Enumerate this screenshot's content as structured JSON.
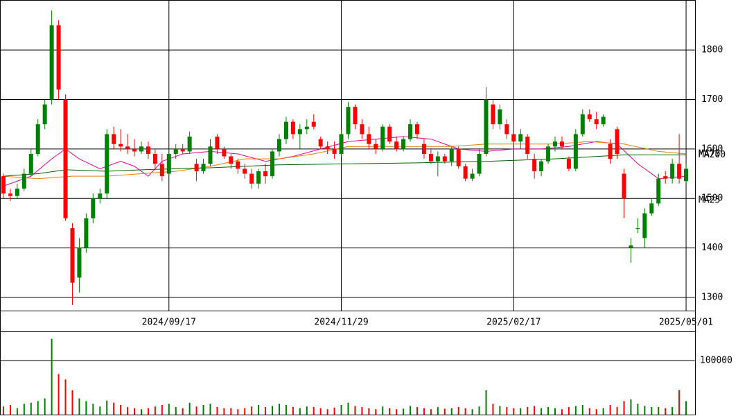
{
  "chart_data": [
    {
      "type": "candlestick",
      "up_color": "#008000",
      "down_color": "#ff0000",
      "ylim": [
        1272,
        1901
      ],
      "yticks": [
        1300,
        1400,
        1500,
        1600,
        1700,
        1800
      ],
      "grid": true,
      "xlim": [
        -0.5,
        100.3
      ],
      "xticks": [
        {
          "value": 24,
          "label": "2024/09/17"
        },
        {
          "value": 49,
          "label": "2024/11/29"
        },
        {
          "value": 74,
          "label": "2025/02/17"
        },
        {
          "value": 99,
          "label": "2025/05/01"
        }
      ],
      "candles": [
        [
          1545,
          1550,
          1500,
          1510
        ],
        [
          1510,
          1520,
          1495,
          1505
        ],
        [
          1505,
          1530,
          1500,
          1520
        ],
        [
          1520,
          1560,
          1515,
          1550
        ],
        [
          1550,
          1600,
          1545,
          1590
        ],
        [
          1590,
          1660,
          1585,
          1650
        ],
        [
          1650,
          1700,
          1640,
          1690
        ],
        [
          1700,
          1880,
          1690,
          1850
        ],
        [
          1850,
          1860,
          1700,
          1720
        ],
        [
          1700,
          1710,
          1455,
          1460
        ],
        [
          1440,
          1450,
          1285,
          1330
        ],
        [
          1340,
          1420,
          1310,
          1400
        ],
        [
          1400,
          1470,
          1390,
          1460
        ],
        [
          1460,
          1510,
          1450,
          1500
        ],
        [
          1500,
          1520,
          1490,
          1510
        ],
        [
          1510,
          1640,
          1500,
          1630
        ],
        [
          1630,
          1645,
          1600,
          1610
        ],
        [
          1610,
          1640,
          1595,
          1605
        ],
        [
          1605,
          1630,
          1590,
          1600
        ],
        [
          1600,
          1620,
          1585,
          1595
        ],
        [
          1595,
          1615,
          1590,
          1605
        ],
        [
          1605,
          1615,
          1580,
          1590
        ],
        [
          1590,
          1600,
          1560,
          1570
        ],
        [
          1570,
          1590,
          1535,
          1545
        ],
        [
          1550,
          1600,
          1545,
          1590
        ],
        [
          1590,
          1610,
          1580,
          1600
        ],
        [
          1600,
          1610,
          1590,
          1595
        ],
        [
          1595,
          1635,
          1590,
          1625
        ],
        [
          1570,
          1580,
          1535,
          1555
        ],
        [
          1555,
          1580,
          1550,
          1570
        ],
        [
          1570,
          1620,
          1565,
          1605
        ],
        [
          1625,
          1630,
          1590,
          1600
        ],
        [
          1600,
          1605,
          1580,
          1585
        ],
        [
          1585,
          1590,
          1560,
          1570
        ],
        [
          1575,
          1580,
          1550,
          1560
        ],
        [
          1560,
          1570,
          1540,
          1550
        ],
        [
          1550,
          1560,
          1520,
          1530
        ],
        [
          1530,
          1560,
          1520,
          1555
        ],
        [
          1555,
          1570,
          1530,
          1545
        ],
        [
          1545,
          1600,
          1540,
          1595
        ],
        [
          1595,
          1630,
          1585,
          1620
        ],
        [
          1620,
          1665,
          1610,
          1655
        ],
        [
          1655,
          1660,
          1620,
          1630
        ],
        [
          1630,
          1650,
          1600,
          1640
        ],
        [
          1640,
          1660,
          1630,
          1645
        ],
        [
          1655,
          1670,
          1640,
          1645
        ],
        [
          1620,
          1625,
          1600,
          1605
        ],
        [
          1605,
          1615,
          1590,
          1600
        ],
        [
          1600,
          1615,
          1580,
          1590
        ],
        [
          1590,
          1640,
          1585,
          1630
        ],
        [
          1630,
          1695,
          1620,
          1685
        ],
        [
          1685,
          1690,
          1640,
          1650
        ],
        [
          1650,
          1660,
          1620,
          1630
        ],
        [
          1630,
          1645,
          1600,
          1610
        ],
        [
          1610,
          1620,
          1590,
          1600
        ],
        [
          1600,
          1650,
          1595,
          1645
        ],
        [
          1645,
          1650,
          1610,
          1615
        ],
        [
          1615,
          1625,
          1595,
          1600
        ],
        [
          1600,
          1625,
          1595,
          1620
        ],
        [
          1620,
          1660,
          1615,
          1650
        ],
        [
          1650,
          1655,
          1620,
          1630
        ],
        [
          1610,
          1620,
          1580,
          1590
        ],
        [
          1590,
          1600,
          1570,
          1575
        ],
        [
          1575,
          1595,
          1545,
          1585
        ],
        [
          1585,
          1590,
          1570,
          1575
        ],
        [
          1575,
          1605,
          1565,
          1600
        ],
        [
          1600,
          1605,
          1560,
          1565
        ],
        [
          1565,
          1570,
          1535,
          1540
        ],
        [
          1540,
          1560,
          1535,
          1550
        ],
        [
          1550,
          1600,
          1545,
          1590
        ],
        [
          1590,
          1725,
          1585,
          1700
        ],
        [
          1690,
          1700,
          1640,
          1650
        ],
        [
          1650,
          1690,
          1640,
          1680
        ],
        [
          1650,
          1660,
          1620,
          1630
        ],
        [
          1630,
          1650,
          1610,
          1615
        ],
        [
          1615,
          1640,
          1600,
          1630
        ],
        [
          1625,
          1630,
          1580,
          1590
        ],
        [
          1580,
          1590,
          1540,
          1555
        ],
        [
          1555,
          1580,
          1545,
          1575
        ],
        [
          1575,
          1610,
          1570,
          1605
        ],
        [
          1605,
          1625,
          1595,
          1615
        ],
        [
          1615,
          1625,
          1600,
          1605
        ],
        [
          1580,
          1585,
          1555,
          1560
        ],
        [
          1560,
          1640,
          1555,
          1630
        ],
        [
          1630,
          1680,
          1625,
          1670
        ],
        [
          1670,
          1680,
          1655,
          1660
        ],
        [
          1660,
          1675,
          1640,
          1650
        ],
        [
          1650,
          1670,
          1645,
          1665
        ],
        [
          1610,
          1620,
          1570,
          1580
        ],
        [
          1640,
          1645,
          1580,
          1590
        ],
        [
          1550,
          1560,
          1460,
          1500
        ],
        [
          1400,
          1420,
          1370,
          1405
        ],
        [
          1440,
          1460,
          1430,
          1440
        ],
        [
          1420,
          1480,
          1400,
          1470
        ],
        [
          1470,
          1500,
          1465,
          1490
        ],
        [
          1490,
          1550,
          1485,
          1540
        ],
        [
          1545,
          1555,
          1530,
          1540
        ],
        [
          1540,
          1580,
          1530,
          1570
        ],
        [
          1570,
          1630,
          1530,
          1540
        ],
        [
          1535,
          1570,
          1530,
          1560
        ]
      ],
      "series": [
        {
          "name": "MA25",
          "color": "#e000a0",
          "x": [
            0,
            4,
            7,
            9,
            11,
            14,
            17,
            19,
            21,
            23,
            26,
            30,
            34,
            38,
            42,
            46,
            50,
            54,
            58,
            62,
            66,
            70,
            74,
            78,
            82,
            86,
            89,
            92,
            95,
            99
          ],
          "values": [
            1525,
            1545,
            1580,
            1600,
            1580,
            1560,
            1575,
            1565,
            1545,
            1575,
            1590,
            1595,
            1590,
            1575,
            1585,
            1600,
            1615,
            1620,
            1625,
            1620,
            1600,
            1595,
            1600,
            1600,
            1605,
            1615,
            1610,
            1570,
            1540,
            1545
          ]
        },
        {
          "name": "MA75",
          "color": "#e08000",
          "x": [
            0,
            5,
            10,
            15,
            20,
            25,
            30,
            35,
            40,
            45,
            50,
            55,
            60,
            65,
            70,
            75,
            80,
            85,
            90,
            95,
            99
          ],
          "values": [
            1545,
            1540,
            1545,
            1545,
            1550,
            1555,
            1565,
            1580,
            1580,
            1590,
            1605,
            1605,
            1605,
            1605,
            1610,
            1610,
            1610,
            1615,
            1610,
            1595,
            1590
          ]
        },
        {
          "name": "MA200",
          "color": "#006000",
          "x": [
            0,
            5,
            9,
            15,
            20,
            30,
            40,
            50,
            60,
            70,
            80,
            90,
            99
          ],
          "values": [
            1545,
            1550,
            1558,
            1555,
            1558,
            1562,
            1568,
            1570,
            1572,
            1575,
            1580,
            1588,
            1588
          ]
        }
      ]
    },
    {
      "type": "volume",
      "ylim": [
        0,
        152500
      ],
      "yticks": [
        100000
      ],
      "grid": true,
      "values": [
        15000,
        18000,
        12000,
        20000,
        22000,
        25000,
        30000,
        140000,
        75000,
        65000,
        45000,
        30000,
        25000,
        20000,
        15000,
        26000,
        22000,
        18000,
        14000,
        12000,
        10000,
        12000,
        15000,
        18000,
        20000,
        14000,
        12000,
        22000,
        15000,
        18000,
        20000,
        14000,
        12000,
        12000,
        10000,
        12000,
        15000,
        18000,
        14000,
        16000,
        20000,
        18000,
        14000,
        12000,
        15000,
        14000,
        12000,
        10000,
        13000,
        18000,
        22000,
        16000,
        14000,
        12000,
        10000,
        15000,
        12000,
        10000,
        11000,
        16000,
        14000,
        12000,
        10000,
        14000,
        11000,
        12000,
        14000,
        12000,
        10000,
        15000,
        45000,
        20000,
        16000,
        14000,
        12000,
        12000,
        14000,
        16000,
        12000,
        14000,
        12000,
        10000,
        14000,
        16000,
        18000,
        12000,
        10000,
        12000,
        18000,
        14000,
        25000,
        28000,
        20000,
        16000,
        14000,
        14000,
        12000,
        14000,
        45000,
        25000
      ]
    }
  ]
}
